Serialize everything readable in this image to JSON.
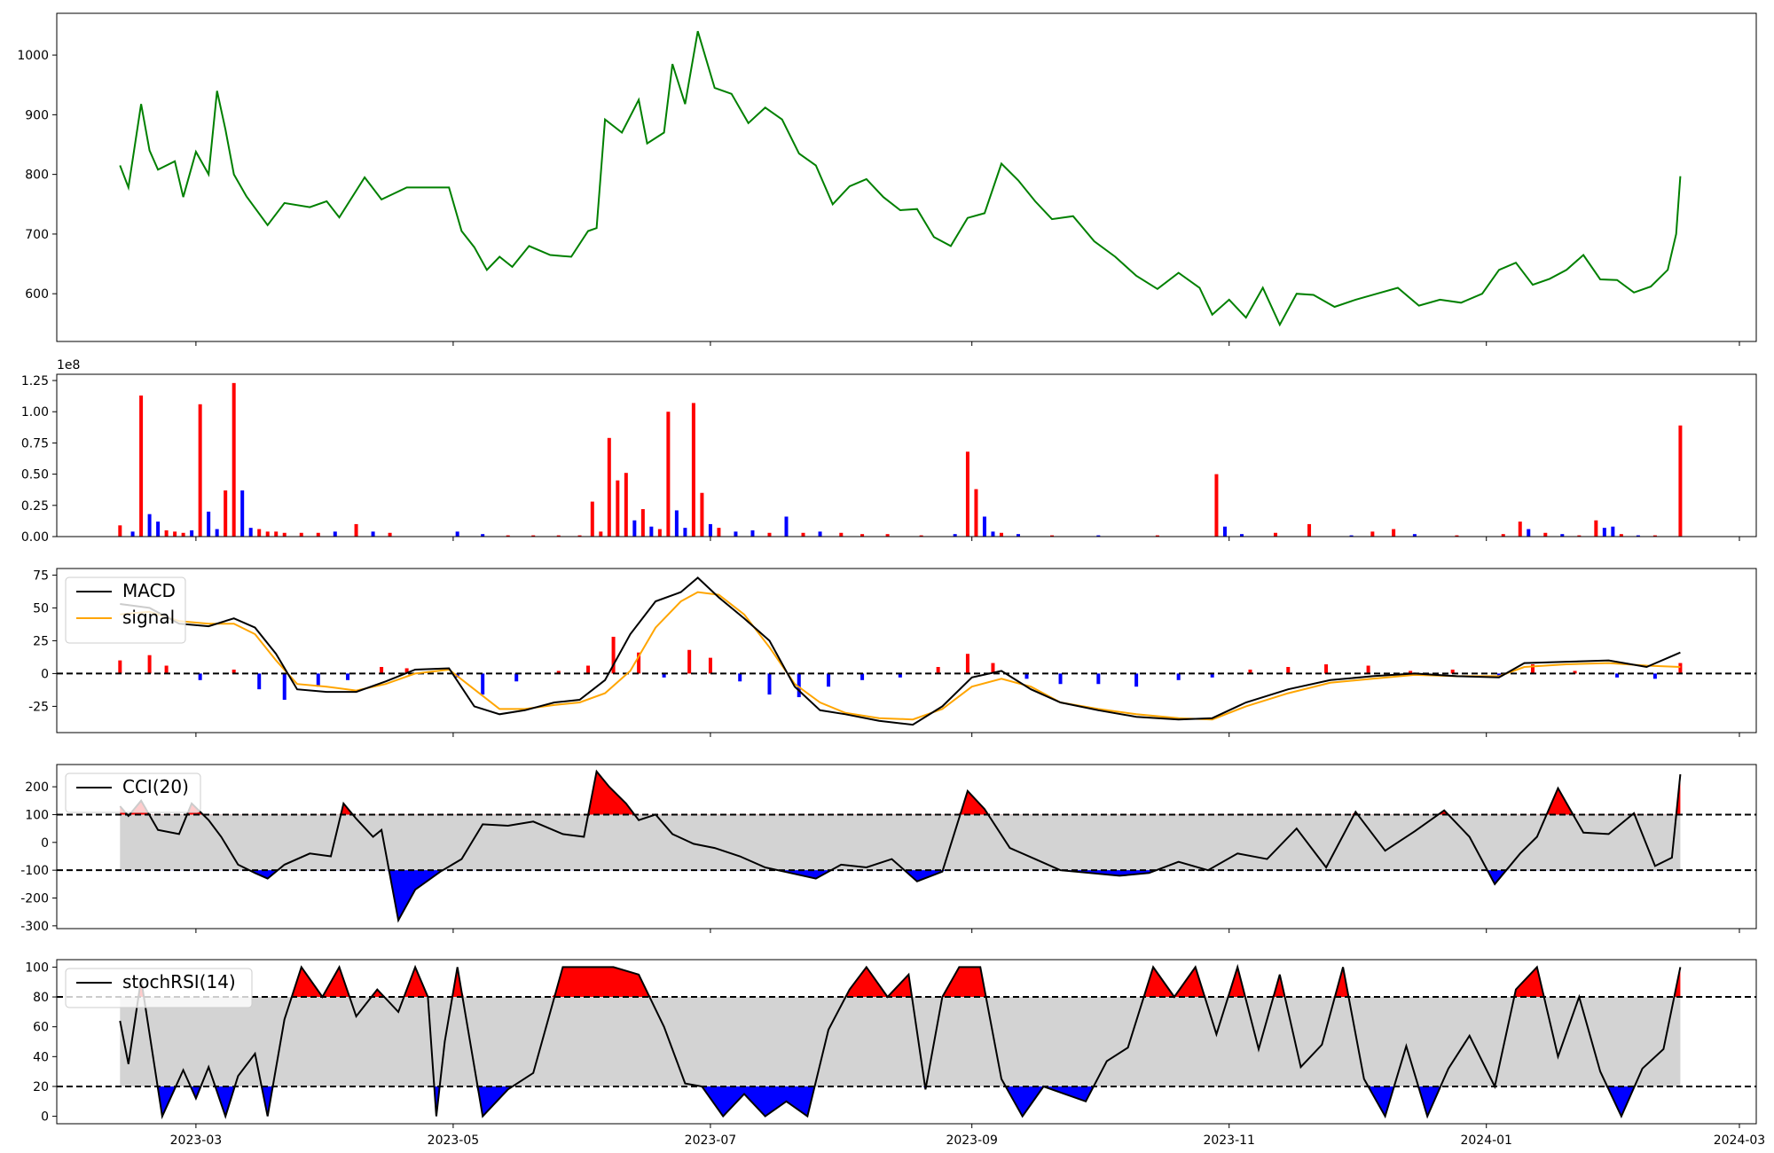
{
  "chart_data": [
    {
      "type": "line",
      "panel": "price",
      "color": "#008000",
      "x": [
        "2023-02-11",
        "2023-02-13",
        "2023-02-16",
        "2023-02-18",
        "2023-02-20",
        "2023-02-24",
        "2023-02-26",
        "2023-03-01",
        "2023-03-04",
        "2023-03-06",
        "2023-03-08",
        "2023-03-10",
        "2023-03-13",
        "2023-03-18",
        "2023-03-22",
        "2023-03-28",
        "2023-04-01",
        "2023-04-04",
        "2023-04-10",
        "2023-04-14",
        "2023-04-20",
        "2023-04-30",
        "2023-05-03",
        "2023-05-06",
        "2023-05-09",
        "2023-05-12",
        "2023-05-15",
        "2023-05-19",
        "2023-05-24",
        "2023-05-29",
        "2023-06-02",
        "2023-06-04",
        "2023-06-06",
        "2023-06-10",
        "2023-06-14",
        "2023-06-16",
        "2023-06-20",
        "2023-06-22",
        "2023-06-25",
        "2023-06-28",
        "2023-07-02",
        "2023-07-06",
        "2023-07-10",
        "2023-07-14",
        "2023-07-18",
        "2023-07-22",
        "2023-07-26",
        "2023-07-30",
        "2023-08-03",
        "2023-08-07",
        "2023-08-11",
        "2023-08-15",
        "2023-08-19",
        "2023-08-23",
        "2023-08-27",
        "2023-08-31",
        "2023-09-04",
        "2023-09-08",
        "2023-09-12",
        "2023-09-16",
        "2023-09-20",
        "2023-09-25",
        "2023-09-30",
        "2023-10-05",
        "2023-10-10",
        "2023-10-15",
        "2023-10-20",
        "2023-10-25",
        "2023-10-28",
        "2023-11-01",
        "2023-11-05",
        "2023-11-09",
        "2023-11-13",
        "2023-11-17",
        "2023-11-21",
        "2023-11-26",
        "2023-12-01",
        "2023-12-06",
        "2023-12-11",
        "2023-12-16",
        "2023-12-21",
        "2023-12-26",
        "2023-12-31",
        "2024-01-04",
        "2024-01-08",
        "2024-01-12",
        "2024-01-16",
        "2024-01-20",
        "2024-01-24",
        "2024-01-28",
        "2024-02-01",
        "2024-02-05",
        "2024-02-09",
        "2024-02-13",
        "2024-02-15",
        "2024-02-16"
      ],
      "y": [
        815,
        778,
        918,
        840,
        808,
        822,
        762,
        838,
        800,
        940,
        875,
        800,
        763,
        715,
        752,
        745,
        755,
        728,
        795,
        758,
        778,
        778,
        705,
        678,
        640,
        662,
        645,
        680,
        665,
        662,
        705,
        710,
        892,
        870,
        925,
        852,
        870,
        985,
        918,
        1040,
        945,
        935,
        886,
        912,
        892,
        835,
        815,
        750,
        780,
        792,
        762,
        740,
        742,
        695,
        680,
        727,
        735,
        818,
        790,
        755,
        725,
        730,
        688,
        662,
        630,
        608,
        635,
        610,
        565,
        590,
        560,
        610,
        548,
        600,
        598,
        578,
        590,
        600,
        610,
        580,
        590,
        585,
        600,
        640,
        652,
        615,
        625,
        640,
        665,
        624,
        623,
        602,
        612,
        640,
        700,
        797
      ],
      "ylim": [
        520,
        1070
      ],
      "yticks": [
        600,
        700,
        800,
        900,
        1000
      ]
    },
    {
      "type": "bar",
      "panel": "volume",
      "multiplier_label": "1e8",
      "colors": {
        "up": "#ff0000",
        "down": "#0000ff"
      },
      "x": [
        "2023-02-11",
        "2023-02-14",
        "2023-02-16",
        "2023-02-18",
        "2023-02-20",
        "2023-02-22",
        "2023-02-24",
        "2023-02-26",
        "2023-02-28",
        "2023-03-02",
        "2023-03-04",
        "2023-03-06",
        "2023-03-08",
        "2023-03-10",
        "2023-03-12",
        "2023-03-14",
        "2023-03-16",
        "2023-03-18",
        "2023-03-20",
        "2023-03-22",
        "2023-03-26",
        "2023-03-30",
        "2023-04-03",
        "2023-04-08",
        "2023-04-12",
        "2023-04-16",
        "2023-05-02",
        "2023-05-08",
        "2023-05-14",
        "2023-05-20",
        "2023-05-26",
        "2023-05-31",
        "2023-06-03",
        "2023-06-05",
        "2023-06-07",
        "2023-06-09",
        "2023-06-11",
        "2023-06-13",
        "2023-06-15",
        "2023-06-17",
        "2023-06-19",
        "2023-06-21",
        "2023-06-23",
        "2023-06-25",
        "2023-06-27",
        "2023-06-29",
        "2023-07-01",
        "2023-07-03",
        "2023-07-07",
        "2023-07-11",
        "2023-07-15",
        "2023-07-19",
        "2023-07-23",
        "2023-07-27",
        "2023-08-01",
        "2023-08-06",
        "2023-08-12",
        "2023-08-20",
        "2023-08-28",
        "2023-08-31",
        "2023-09-02",
        "2023-09-04",
        "2023-09-06",
        "2023-09-08",
        "2023-09-12",
        "2023-09-20",
        "2023-10-01",
        "2023-10-15",
        "2023-10-29",
        "2023-10-31",
        "2023-11-04",
        "2023-11-12",
        "2023-11-20",
        "2023-11-30",
        "2023-12-05",
        "2023-12-10",
        "2023-12-15",
        "2023-12-25",
        "2024-01-05",
        "2024-01-09",
        "2024-01-11",
        "2024-01-15",
        "2024-01-19",
        "2024-01-23",
        "2024-01-27",
        "2024-01-29",
        "2024-01-31",
        "2024-02-02",
        "2024-02-06",
        "2024-02-10",
        "2024-02-16"
      ],
      "values": [
        0.09,
        0.04,
        1.13,
        0.18,
        0.12,
        0.05,
        0.04,
        0.03,
        0.05,
        1.06,
        0.2,
        0.06,
        0.37,
        1.23,
        0.37,
        0.07,
        0.06,
        0.04,
        0.04,
        0.03,
        0.03,
        0.03,
        0.04,
        0.1,
        0.04,
        0.03,
        0.04,
        0.02,
        0.01,
        0.01,
        0.01,
        0.01,
        0.28,
        0.04,
        0.79,
        0.45,
        0.51,
        0.13,
        0.22,
        0.08,
        0.06,
        1.0,
        0.21,
        0.07,
        1.07,
        0.35,
        0.1,
        0.07,
        0.04,
        0.05,
        0.03,
        0.16,
        0.03,
        0.04,
        0.03,
        0.02,
        0.02,
        0.01,
        0.02,
        0.68,
        0.38,
        0.16,
        0.04,
        0.03,
        0.02,
        0.01,
        0.01,
        0.01,
        0.5,
        0.08,
        0.02,
        0.03,
        0.1,
        0.01,
        0.04,
        0.06,
        0.02,
        0.01,
        0.02,
        0.12,
        0.06,
        0.03,
        0.02,
        0.01,
        0.13,
        0.07,
        0.08,
        0.02,
        0.01,
        0.01,
        0.89
      ],
      "up": [
        1,
        0,
        1,
        0,
        0,
        1,
        1,
        1,
        0,
        1,
        0,
        0,
        1,
        1,
        0,
        0,
        1,
        1,
        1,
        1,
        1,
        1,
        0,
        1,
        0,
        1,
        0,
        0,
        1,
        1,
        1,
        1,
        1,
        1,
        1,
        1,
        1,
        0,
        1,
        0,
        1,
        1,
        0,
        0,
        1,
        1,
        0,
        1,
        0,
        0,
        1,
        0,
        1,
        0,
        1,
        1,
        1,
        1,
        0,
        1,
        1,
        0,
        0,
        1,
        0,
        1,
        0,
        1,
        1,
        0,
        0,
        1,
        1,
        0,
        1,
        1,
        0,
        1,
        1,
        1,
        0,
        1,
        0,
        1,
        1,
        0,
        0,
        1,
        0,
        1,
        1
      ],
      "ylim": [
        0,
        1.3
      ],
      "yticks": [
        0.0,
        0.25,
        0.5,
        0.75,
        1.0,
        1.25
      ]
    },
    {
      "type": "line",
      "panel": "macd",
      "legend": [
        "MACD",
        "signal"
      ],
      "colors": {
        "macd": "#000000",
        "signal": "#ffa500",
        "hist_pos": "#ff0000",
        "hist_neg": "#0000ff"
      },
      "x": [
        "2023-02-11",
        "2023-02-18",
        "2023-02-25",
        "2023-03-04",
        "2023-03-10",
        "2023-03-15",
        "2023-03-20",
        "2023-03-25",
        "2023-04-01",
        "2023-04-08",
        "2023-04-15",
        "2023-04-22",
        "2023-04-30",
        "2023-05-06",
        "2023-05-12",
        "2023-05-18",
        "2023-05-25",
        "2023-05-31",
        "2023-06-06",
        "2023-06-12",
        "2023-06-18",
        "2023-06-24",
        "2023-06-28",
        "2023-07-03",
        "2023-07-09",
        "2023-07-15",
        "2023-07-21",
        "2023-07-27",
        "2023-08-02",
        "2023-08-10",
        "2023-08-18",
        "2023-08-25",
        "2023-09-01",
        "2023-09-08",
        "2023-09-15",
        "2023-09-22",
        "2023-10-01",
        "2023-10-10",
        "2023-10-20",
        "2023-10-28",
        "2023-11-05",
        "2023-11-15",
        "2023-11-25",
        "2023-12-05",
        "2023-12-15",
        "2023-12-25",
        "2024-01-04",
        "2024-01-10",
        "2024-01-20",
        "2024-01-30",
        "2024-02-08",
        "2024-02-16"
      ],
      "macd": [
        53,
        50,
        38,
        36,
        42,
        35,
        15,
        -12,
        -14,
        -14,
        -6,
        3,
        4,
        -25,
        -31,
        -28,
        -22,
        -20,
        -5,
        30,
        55,
        62,
        73,
        58,
        42,
        25,
        -10,
        -28,
        -31,
        -36,
        -39,
        -25,
        -3,
        2,
        -12,
        -22,
        -28,
        -33,
        -35,
        -34,
        -22,
        -12,
        -5,
        -2,
        0,
        -2,
        -3,
        8,
        9,
        10,
        5,
        16
      ],
      "signal": [
        45,
        47,
        40,
        38,
        38,
        30,
        10,
        -8,
        -10,
        -13,
        -8,
        0,
        3,
        -12,
        -27,
        -27,
        -24,
        -22,
        -15,
        2,
        35,
        55,
        62,
        60,
        45,
        20,
        -8,
        -22,
        -30,
        -34,
        -35,
        -27,
        -10,
        -4,
        -10,
        -22,
        -27,
        -31,
        -34,
        -35,
        -25,
        -15,
        -7,
        -4,
        -1,
        -2,
        -2,
        5,
        7,
        8,
        6,
        5
      ],
      "hist_x": [
        "2023-02-11",
        "2023-02-18",
        "2023-02-22",
        "2023-03-02",
        "2023-03-10",
        "2023-03-16",
        "2023-03-22",
        "2023-03-30",
        "2023-04-06",
        "2023-04-14",
        "2023-04-20",
        "2023-05-02",
        "2023-05-08",
        "2023-05-16",
        "2023-05-26",
        "2023-06-02",
        "2023-06-08",
        "2023-06-14",
        "2023-06-20",
        "2023-06-26",
        "2023-07-01",
        "2023-07-08",
        "2023-07-15",
        "2023-07-22",
        "2023-07-29",
        "2023-08-06",
        "2023-08-15",
        "2023-08-24",
        "2023-08-31",
        "2023-09-06",
        "2023-09-14",
        "2023-09-22",
        "2023-10-01",
        "2023-10-10",
        "2023-10-20",
        "2023-10-28",
        "2023-11-06",
        "2023-11-15",
        "2023-11-24",
        "2023-12-04",
        "2023-12-14",
        "2023-12-24",
        "2024-01-04",
        "2024-01-12",
        "2024-01-22",
        "2024-02-01",
        "2024-02-10",
        "2024-02-16"
      ],
      "hist": [
        10,
        14,
        6,
        -5,
        3,
        -12,
        -20,
        -10,
        -5,
        5,
        4,
        -3,
        -16,
        -6,
        2,
        6,
        28,
        16,
        -3,
        18,
        12,
        -6,
        -16,
        -18,
        -10,
        -5,
        -3,
        5,
        15,
        8,
        -4,
        -8,
        -8,
        -10,
        -5,
        -3,
        3,
        5,
        7,
        6,
        2,
        3,
        -2,
        7,
        2,
        -3,
        -4,
        8
      ],
      "ylim": [
        -45,
        80
      ],
      "yticks": [
        -25,
        0,
        25,
        50,
        75
      ]
    },
    {
      "type": "line",
      "panel": "cci",
      "legend": [
        "CCI(20)"
      ],
      "color": "#000000",
      "bands": [
        100,
        -100
      ],
      "x": [
        "2023-02-11",
        "2023-02-13",
        "2023-02-16",
        "2023-02-20",
        "2023-02-25",
        "2023-02-28",
        "2023-03-04",
        "2023-03-07",
        "2023-03-11",
        "2023-03-15",
        "2023-03-18",
        "2023-03-22",
        "2023-03-28",
        "2023-04-02",
        "2023-04-05",
        "2023-04-08",
        "2023-04-12",
        "2023-04-14",
        "2023-04-18",
        "2023-04-22",
        "2023-04-28",
        "2023-05-03",
        "2023-05-08",
        "2023-05-14",
        "2023-05-20",
        "2023-05-27",
        "2023-06-01",
        "2023-06-04",
        "2023-06-07",
        "2023-06-11",
        "2023-06-14",
        "2023-06-18",
        "2023-06-22",
        "2023-06-27",
        "2023-07-02",
        "2023-07-08",
        "2023-07-14",
        "2023-07-20",
        "2023-07-26",
        "2023-08-01",
        "2023-08-07",
        "2023-08-13",
        "2023-08-19",
        "2023-08-25",
        "2023-08-31",
        "2023-09-04",
        "2023-09-10",
        "2023-09-16",
        "2023-09-22",
        "2023-09-29",
        "2023-10-06",
        "2023-10-13",
        "2023-10-20",
        "2023-10-27",
        "2023-11-03",
        "2023-11-10",
        "2023-11-17",
        "2023-11-24",
        "2023-12-01",
        "2023-12-08",
        "2023-12-15",
        "2023-12-22",
        "2023-12-28",
        "2024-01-03",
        "2024-01-09",
        "2024-01-13",
        "2024-01-18",
        "2024-01-24",
        "2024-01-30",
        "2024-02-05",
        "2024-02-10",
        "2024-02-14",
        "2024-02-16"
      ],
      "y": [
        130,
        95,
        150,
        45,
        30,
        140,
        80,
        20,
        -80,
        -110,
        -130,
        -80,
        -40,
        -50,
        140,
        85,
        20,
        45,
        -280,
        -170,
        -105,
        -60,
        65,
        60,
        75,
        30,
        20,
        255,
        200,
        140,
        80,
        100,
        30,
        -5,
        -20,
        -50,
        -90,
        -110,
        -130,
        -80,
        -90,
        -60,
        -140,
        -105,
        185,
        120,
        -20,
        -60,
        -100,
        -110,
        -120,
        -110,
        -70,
        -100,
        -40,
        -60,
        50,
        -90,
        110,
        -30,
        40,
        115,
        20,
        -150,
        -40,
        20,
        195,
        35,
        30,
        105,
        -85,
        -55,
        245
      ],
      "ylim": [
        -310,
        280
      ],
      "yticks": [
        -300,
        -200,
        -100,
        0,
        100,
        200
      ]
    },
    {
      "type": "line",
      "panel": "stochrsi",
      "legend": [
        "stochRSI(14)"
      ],
      "color": "#000000",
      "bands": [
        80,
        20
      ],
      "x": [
        "2023-02-11",
        "2023-02-13",
        "2023-02-16",
        "2023-02-21",
        "2023-02-26",
        "2023-03-01",
        "2023-03-04",
        "2023-03-08",
        "2023-03-11",
        "2023-03-15",
        "2023-03-18",
        "2023-03-22",
        "2023-03-26",
        "2023-03-31",
        "2023-04-04",
        "2023-04-08",
        "2023-04-13",
        "2023-04-18",
        "2023-04-22",
        "2023-04-25",
        "2023-04-27",
        "2023-04-29",
        "2023-05-02",
        "2023-05-08",
        "2023-05-14",
        "2023-05-20",
        "2023-05-27",
        "2023-06-02",
        "2023-06-08",
        "2023-06-14",
        "2023-06-20",
        "2023-06-25",
        "2023-06-29",
        "2023-07-04",
        "2023-07-09",
        "2023-07-14",
        "2023-07-19",
        "2023-07-24",
        "2023-07-29",
        "2023-08-03",
        "2023-08-07",
        "2023-08-12",
        "2023-08-17",
        "2023-08-21",
        "2023-08-25",
        "2023-08-29",
        "2023-09-03",
        "2023-09-08",
        "2023-09-13",
        "2023-09-18",
        "2023-09-23",
        "2023-09-28",
        "2023-10-03",
        "2023-10-08",
        "2023-10-14",
        "2023-10-19",
        "2023-10-24",
        "2023-10-29",
        "2023-11-03",
        "2023-11-08",
        "2023-11-13",
        "2023-11-18",
        "2023-11-23",
        "2023-11-28",
        "2023-12-03",
        "2023-12-08",
        "2023-12-13",
        "2023-12-18",
        "2023-12-23",
        "2023-12-28",
        "2024-01-03",
        "2024-01-08",
        "2024-01-13",
        "2024-01-18",
        "2024-01-23",
        "2024-01-28",
        "2024-02-02",
        "2024-02-07",
        "2024-02-12",
        "2024-02-16"
      ],
      "y": [
        64,
        35,
        92,
        0,
        31,
        12,
        33,
        0,
        27,
        42,
        0,
        65,
        100,
        80,
        100,
        67,
        85,
        70,
        100,
        80,
        0,
        50,
        100,
        0,
        18,
        29,
        100,
        100,
        100,
        95,
        60,
        22,
        20,
        0,
        15,
        0,
        10,
        0,
        58,
        85,
        100,
        80,
        95,
        18,
        80,
        100,
        100,
        25,
        0,
        20,
        15,
        10,
        37,
        46,
        100,
        80,
        100,
        55,
        100,
        45,
        95,
        33,
        48,
        100,
        25,
        0,
        47,
        0,
        32,
        54,
        20,
        85,
        100,
        40,
        80,
        30,
        0,
        32,
        45,
        100
      ],
      "ylim": [
        -5,
        105
      ],
      "yticks": [
        0,
        20,
        40,
        60,
        80,
        100
      ]
    }
  ],
  "shared_x": {
    "start": "2023-01-27",
    "end": "2024-03-05",
    "tick_dates": [
      "2023-03-01",
      "2023-05-01",
      "2023-07-01",
      "2023-09-01",
      "2023-11-01",
      "2024-01-01",
      "2024-03-01"
    ],
    "tick_labels": [
      "2023-03",
      "2023-05",
      "2023-07",
      "2023-09",
      "2023-11",
      "2024-01",
      "2024-03"
    ]
  }
}
